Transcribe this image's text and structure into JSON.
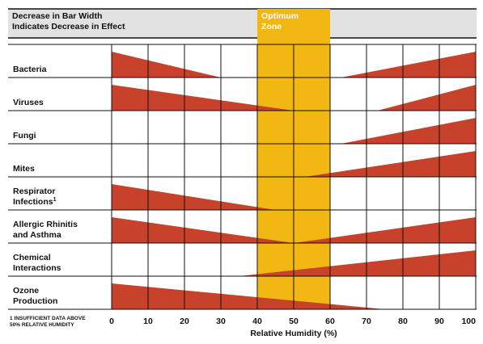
{
  "chart_data": {
    "type": "area",
    "title_lines": [
      "Decrease in Bar Width",
      "Indicates Decrease in Effect"
    ],
    "optimum_label_lines": [
      "Optimum",
      "Zone"
    ],
    "optimum_range": [
      40,
      60
    ],
    "xlabel": "Relative Humidity (%)",
    "xlim": [
      0,
      100
    ],
    "x_ticks": [
      0,
      10,
      20,
      30,
      40,
      50,
      60,
      70,
      80,
      90,
      100
    ],
    "footnote_lines": [
      "1 INSUFFICIENT DATA ABOVE",
      "50% RELATIVE HUMIDITY"
    ],
    "max_width": 1,
    "series": [
      {
        "name": "Bacteria",
        "label_lines": [
          "Bacteria"
        ],
        "footnote_mark": "",
        "points": [
          [
            0,
            1.0
          ],
          [
            30,
            0.0
          ],
          [
            60,
            0.0
          ],
          [
            63,
            0.0
          ],
          [
            100,
            1.0
          ]
        ]
      },
      {
        "name": "Viruses",
        "label_lines": [
          "Viruses"
        ],
        "footnote_mark": "",
        "points": [
          [
            0,
            1.0
          ],
          [
            50,
            0.0
          ],
          [
            73,
            0.0
          ],
          [
            100,
            1.0
          ]
        ]
      },
      {
        "name": "Fungi",
        "label_lines": [
          "Fungi"
        ],
        "footnote_mark": "",
        "points": [
          [
            0,
            0.0
          ],
          [
            63,
            0.0
          ],
          [
            100,
            1.0
          ]
        ]
      },
      {
        "name": "Mites",
        "label_lines": [
          "Mites"
        ],
        "footnote_mark": "",
        "points": [
          [
            0,
            0.0
          ],
          [
            53,
            0.0
          ],
          [
            100,
            1.0
          ]
        ]
      },
      {
        "name": "Respirator Infections",
        "label_lines": [
          "Respirator",
          "Infections"
        ],
        "footnote_mark": "1",
        "points": [
          [
            0,
            1.0
          ],
          [
            45,
            0.0
          ],
          [
            100,
            0.0
          ]
        ]
      },
      {
        "name": "Allergic Rhinitis and Asthma",
        "label_lines": [
          "Allergic Rhinitis",
          "and Asthma"
        ],
        "footnote_mark": "",
        "points": [
          [
            0,
            1.0
          ],
          [
            50,
            0.0
          ],
          [
            100,
            1.0
          ]
        ]
      },
      {
        "name": "Chemical Interactions",
        "label_lines": [
          "Chemical",
          "Interactions"
        ],
        "footnote_mark": "",
        "points": [
          [
            0,
            0.0
          ],
          [
            35,
            0.0
          ],
          [
            100,
            1.0
          ]
        ]
      },
      {
        "name": "Ozone Production",
        "label_lines": [
          "Ozone",
          "Production"
        ],
        "footnote_mark": "",
        "points": [
          [
            0,
            1.0
          ],
          [
            75,
            0.0
          ],
          [
            100,
            0.0
          ]
        ]
      }
    ],
    "colors": {
      "wedge": "#c8412b",
      "optimum_zone": "#f2b712",
      "optimum_text": "#ffffff",
      "header_background": "#e2e2e2",
      "grid": "#111111",
      "text": "#111111"
    }
  }
}
